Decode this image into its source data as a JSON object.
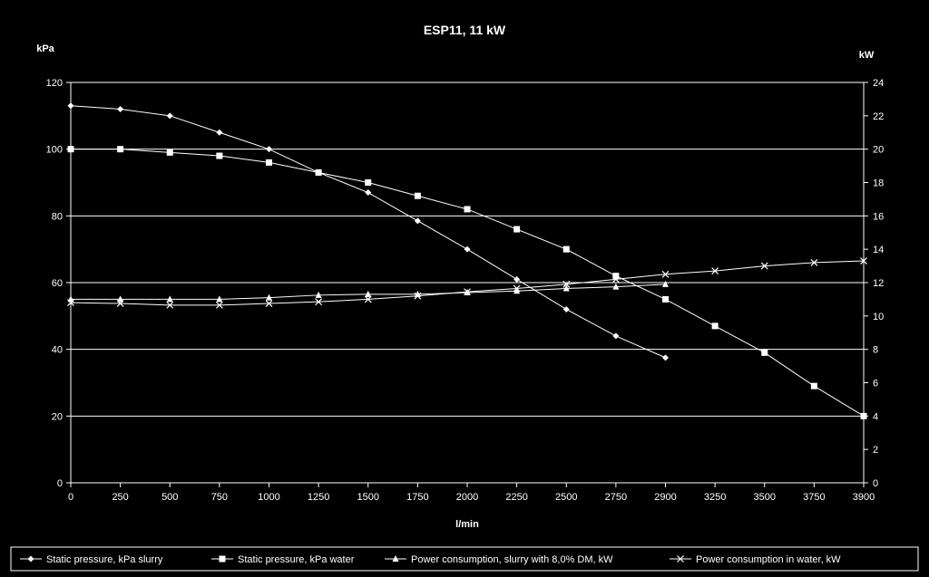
{
  "chart_data": {
    "type": "line",
    "title": "ESP11, 11 kW",
    "xlabel": "l/min",
    "ylabel_left": "kPa",
    "ylabel_right": "kW",
    "x_ticks": [
      "0",
      "250",
      "500",
      "750",
      "1000",
      "1250",
      "1500",
      "1750",
      "2000",
      "2250",
      "2500",
      "2750",
      "2900",
      "3250",
      "3500",
      "3750",
      "3900"
    ],
    "y_left_range": [
      0,
      120
    ],
    "y_left_ticks": [
      "0",
      "20",
      "40",
      "60",
      "80",
      "100",
      "120"
    ],
    "y_right_range": [
      0,
      24
    ],
    "y_right_ticks": [
      "0",
      "2",
      "4",
      "6",
      "8",
      "10",
      "12",
      "14",
      "16",
      "18",
      "20",
      "22",
      "24"
    ],
    "grid": "horizontal",
    "legend_position": "bottom",
    "series": [
      {
        "name": "Static pressure, kPa slurry",
        "axis": "left",
        "marker": "diamond",
        "x": [
          "0",
          "250",
          "500",
          "750",
          "1000",
          "1250",
          "1500",
          "1750",
          "2000",
          "2250",
          "2500",
          "2750",
          "2900"
        ],
        "values": [
          113,
          112,
          110,
          105,
          100,
          93,
          87,
          78.5,
          70,
          61,
          52,
          44,
          37.5
        ]
      },
      {
        "name": "Static pressure, kPa water",
        "axis": "left",
        "marker": "square",
        "x": [
          "0",
          "250",
          "500",
          "750",
          "1000",
          "1250",
          "1500",
          "1750",
          "2000",
          "2250",
          "2500",
          "2750",
          "2900",
          "3250",
          "3500",
          "3750",
          "3900"
        ],
        "values": [
          100,
          100,
          99,
          98,
          96,
          93,
          90,
          86,
          82,
          76,
          70,
          62,
          55,
          47,
          39,
          29,
          20
        ]
      },
      {
        "name": "Power consumption, slurry with 8,0% DM, kW",
        "axis": "right",
        "marker": "triangle",
        "x": [
          "0",
          "250",
          "500",
          "750",
          "1000",
          "1250",
          "1500",
          "1750",
          "2000",
          "2250",
          "2500",
          "2750",
          "2900"
        ],
        "values": [
          11,
          11,
          11,
          11,
          11.1,
          11.25,
          11.3,
          11.3,
          11.4,
          11.5,
          11.65,
          11.75,
          11.9
        ]
      },
      {
        "name": "Power consumption in water, kW",
        "axis": "right",
        "marker": "x",
        "x": [
          "0",
          "250",
          "500",
          "750",
          "1000",
          "1250",
          "1500",
          "1750",
          "2000",
          "2250",
          "2500",
          "2750",
          "2900",
          "3250",
          "3500",
          "3750",
          "3900"
        ],
        "values": [
          10.8,
          10.75,
          10.65,
          10.65,
          10.75,
          10.85,
          11,
          11.2,
          11.45,
          11.65,
          11.9,
          12.2,
          12.5,
          12.7,
          13,
          13.2,
          13.3
        ]
      }
    ]
  }
}
